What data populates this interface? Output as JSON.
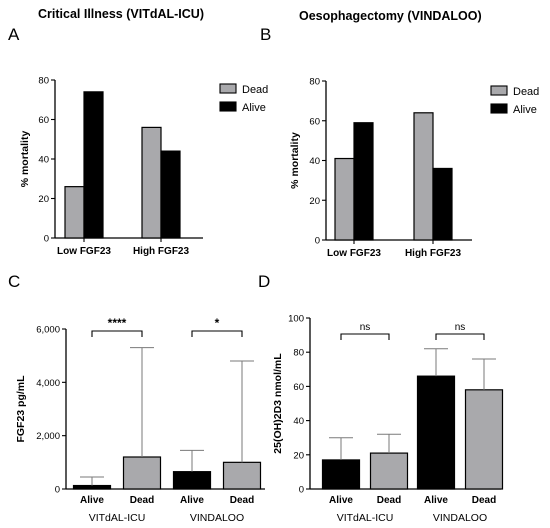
{
  "panels": {
    "A": {
      "letter": "A",
      "title": "Critical  Illness (VITdAL-ICU)"
    },
    "B": {
      "letter": "B",
      "title": "Oesophagectomy (VINDALOO)"
    },
    "C": {
      "letter": "C"
    },
    "D": {
      "letter": "D"
    }
  },
  "legend": {
    "dead": "Dead",
    "alive": "Alive"
  },
  "colors": {
    "dead": "#a9a9ac",
    "alive": "#000000"
  },
  "chart_data": [
    {
      "panel": "A",
      "type": "bar",
      "title": "Critical  Illness (VITdAL-ICU)",
      "ylabel": "% mortality",
      "categories": [
        "Low FGF23",
        "High FGF23"
      ],
      "series": [
        {
          "name": "Dead",
          "values": [
            26,
            56
          ]
        },
        {
          "name": "Alive",
          "values": [
            74,
            44
          ]
        }
      ],
      "ylim": [
        0,
        80
      ],
      "yticks": [
        "0",
        "20",
        "40",
        "60",
        "80"
      ],
      "legend_position": "top-right"
    },
    {
      "panel": "B",
      "type": "bar",
      "title": "Oesophagectomy (VINDALOO)",
      "ylabel": "% mortality",
      "categories": [
        "Low FGF23",
        "High FGF23"
      ],
      "series": [
        {
          "name": "Dead",
          "values": [
            41,
            64
          ]
        },
        {
          "name": "Alive",
          "values": [
            59,
            36
          ]
        }
      ],
      "ylim": [
        0,
        80
      ],
      "yticks": [
        "0",
        "20",
        "40",
        "60",
        "80"
      ],
      "legend_position": "top-right"
    },
    {
      "panel": "C",
      "type": "bar",
      "ylabel": "FGF23 pg/mL",
      "ylim": [
        0,
        6000
      ],
      "yticks": [
        "0",
        "2,000",
        "4,000",
        "6,000"
      ],
      "bars": [
        {
          "label": "Alive",
          "group": "VITdAL-ICU",
          "value": 130,
          "error": 450,
          "color": "alive"
        },
        {
          "label": "Dead",
          "group": "VITdAL-ICU",
          "value": 1200,
          "error": 5300,
          "color": "dead"
        },
        {
          "label": "Alive",
          "group": "VINDALOO",
          "value": 650,
          "error": 1450,
          "color": "alive"
        },
        {
          "label": "Dead",
          "group": "VINDALOO",
          "value": 1000,
          "error": 4800,
          "color": "dead"
        }
      ],
      "groups": [
        "VITdAL-ICU",
        "VINDALOO"
      ],
      "significance": [
        "****",
        "*"
      ]
    },
    {
      "panel": "D",
      "type": "bar",
      "ylabel": "25(OH)2D3 nmol/mL",
      "ylim": [
        0,
        100
      ],
      "yticks": [
        "0",
        "20",
        "40",
        "60",
        "80",
        "100"
      ],
      "bars": [
        {
          "label": "Alive",
          "group": "VITdAL-ICU",
          "value": 17,
          "error": 30,
          "color": "alive"
        },
        {
          "label": "Dead",
          "group": "VITdAL-ICU",
          "value": 21,
          "error": 32,
          "color": "dead"
        },
        {
          "label": "Alive",
          "group": "VINDALOO",
          "value": 66,
          "error": 82,
          "color": "alive"
        },
        {
          "label": "Dead",
          "group": "VINDALOO",
          "value": 58,
          "error": 76,
          "color": "dead"
        }
      ],
      "groups": [
        "VITdAL-ICU",
        "VINDALOO"
      ],
      "significance": [
        "ns",
        "ns"
      ]
    }
  ]
}
